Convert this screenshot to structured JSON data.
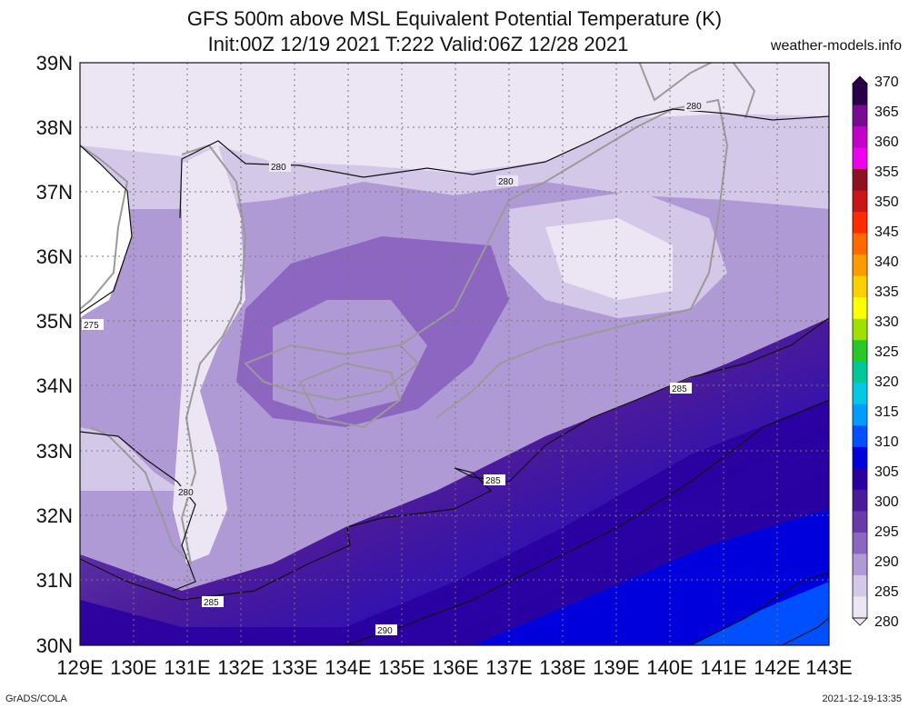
{
  "title": {
    "line1": "GFS 500m above MSL Equivalent Potential Temperature (K)",
    "line2": "Init:00Z 12/19 2021 T:222 Valid:06Z 12/28 2021"
  },
  "site": "weather-models.info",
  "footer": {
    "left": "GrADS/COLA",
    "right": "2021-12-19-13:35"
  },
  "map": {
    "lon_labels": [
      "129E",
      "130E",
      "131E",
      "132E",
      "133E",
      "134E",
      "135E",
      "136E",
      "137E",
      "138E",
      "139E",
      "140E",
      "141E",
      "142E",
      "143E"
    ],
    "lat_labels": [
      "39N",
      "38N",
      "37N",
      "36N",
      "35N",
      "34N",
      "33N",
      "32N",
      "31N",
      "30N"
    ],
    "contour_labels": [
      "280",
      "280",
      "280",
      "280",
      "275",
      "285",
      "285",
      "285",
      "290"
    ]
  },
  "colorbar": {
    "labels": [
      "370",
      "365",
      "360",
      "355",
      "350",
      "345",
      "340",
      "335",
      "330",
      "325",
      "320",
      "315",
      "310",
      "305",
      "300",
      "295",
      "290",
      "285",
      "280"
    ],
    "colors": [
      "#2a004d",
      "#7a0a8f",
      "#c200c8",
      "#ee00ee",
      "#8f1020",
      "#c81616",
      "#ff2a00",
      "#ff6a00",
      "#ff9a00",
      "#ffd000",
      "#ffff00",
      "#a0e000",
      "#28c828",
      "#00c898",
      "#00c8e6",
      "#009cff",
      "#0050ff",
      "#0000dc",
      "#2a00a0",
      "#4a1a9a",
      "#6a3aaa",
      "#8c66c0",
      "#b09ad6",
      "#d4c8e8",
      "#ece6f4"
    ]
  }
}
